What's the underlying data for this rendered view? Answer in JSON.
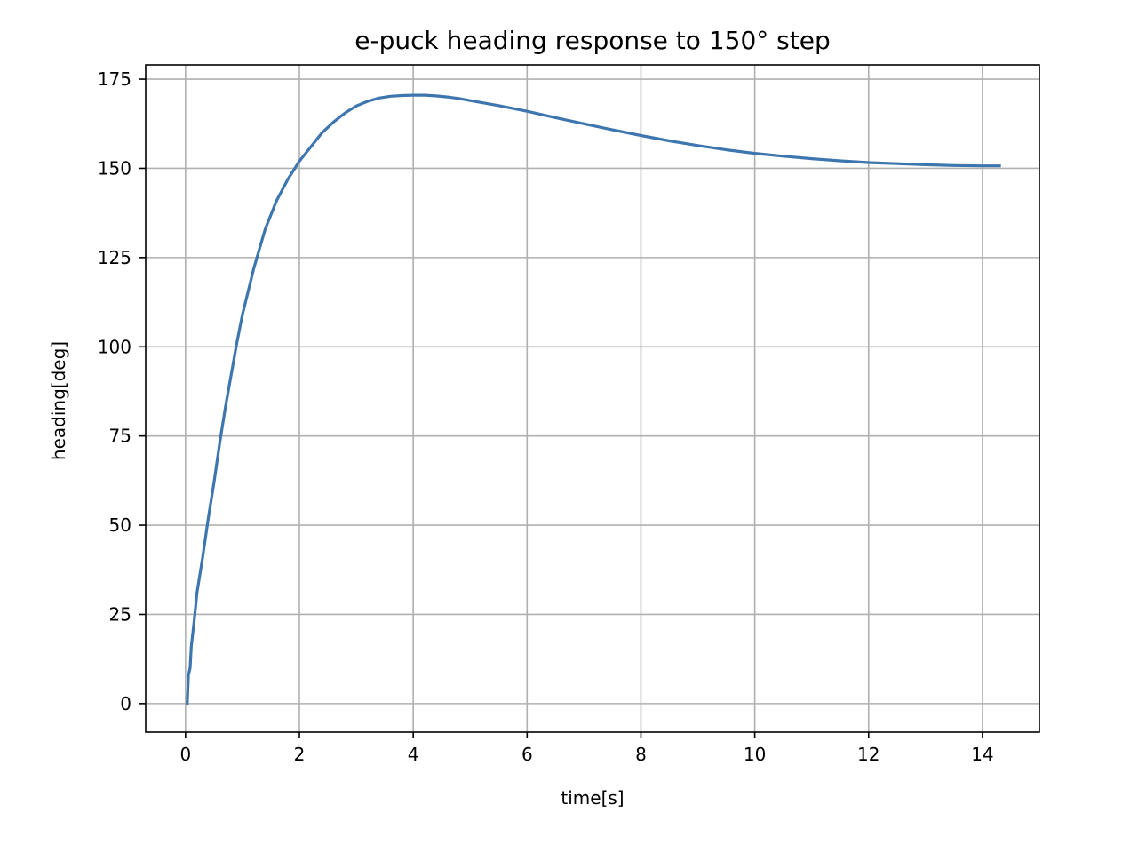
{
  "chart_data": {
    "type": "line",
    "title": "e-puck heading response to 150° step",
    "xlabel": "time[s]",
    "ylabel": "heading[deg]",
    "xlim": [
      -0.7,
      15.0
    ],
    "ylim": [
      -8,
      179
    ],
    "xticks": [
      0,
      2,
      4,
      6,
      8,
      10,
      12,
      14
    ],
    "yticks": [
      0,
      25,
      50,
      75,
      100,
      125,
      150,
      175
    ],
    "grid": true,
    "legend": "none",
    "series": [
      {
        "color": "#3d76af",
        "x": [
          0.03,
          0.05,
          0.08,
          0.1,
          0.15,
          0.2,
          0.3,
          0.4,
          0.5,
          0.6,
          0.7,
          0.8,
          0.9,
          1.0,
          1.2,
          1.4,
          1.6,
          1.8,
          2.0,
          2.2,
          2.4,
          2.6,
          2.8,
          3.0,
          3.2,
          3.4,
          3.6,
          3.8,
          4.0,
          4.2,
          4.4,
          4.6,
          4.8,
          5.0,
          5.5,
          6.0,
          6.5,
          7.0,
          7.5,
          8.0,
          8.5,
          9.0,
          9.5,
          10.0,
          10.5,
          11.0,
          11.5,
          12.0,
          12.5,
          13.0,
          13.5,
          14.0,
          14.3
        ],
        "y": [
          0,
          8,
          10,
          16,
          23,
          31,
          41,
          52,
          62,
          73,
          83,
          92,
          101,
          109,
          122,
          133,
          141,
          147,
          152,
          156,
          160,
          163,
          165.5,
          167.5,
          168.8,
          169.7,
          170.2,
          170.4,
          170.5,
          170.5,
          170.3,
          170.0,
          169.6,
          169.0,
          167.6,
          166.0,
          164.2,
          162.5,
          160.8,
          159.2,
          157.7,
          156.4,
          155.2,
          154.2,
          153.4,
          152.7,
          152.1,
          151.6,
          151.3,
          151.0,
          150.8,
          150.7,
          150.7
        ]
      }
    ]
  }
}
